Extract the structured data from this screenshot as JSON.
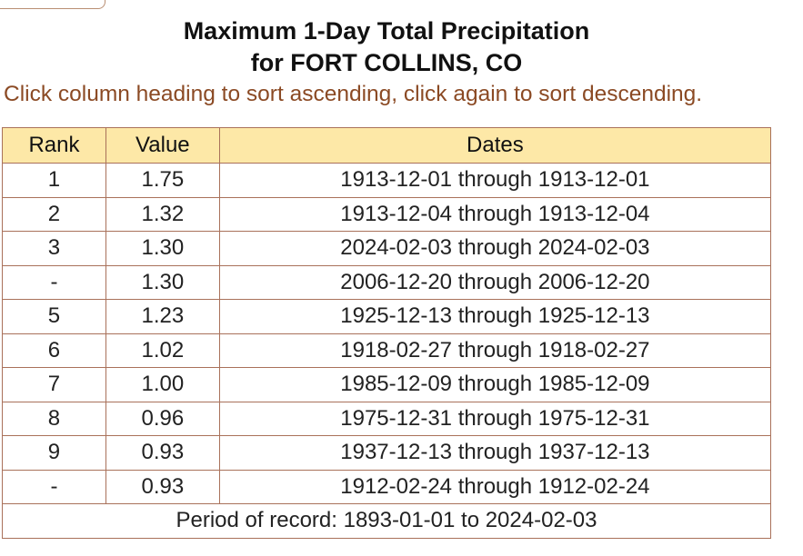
{
  "title_line1": "Maximum 1-Day Total Precipitation",
  "title_line2": "for FORT COLLINS, CO",
  "instructions": "Click column heading to sort ascending, click again to sort descending.",
  "table": {
    "headers": {
      "rank": "Rank",
      "value": "Value",
      "dates": "Dates"
    },
    "rows": [
      {
        "rank": "1",
        "value": "1.75",
        "dates": "1913-12-01 through 1913-12-01"
      },
      {
        "rank": "2",
        "value": "1.32",
        "dates": "1913-12-04 through 1913-12-04"
      },
      {
        "rank": "3",
        "value": "1.30",
        "dates": "2024-02-03 through 2024-02-03"
      },
      {
        "rank": "-",
        "value": "1.30",
        "dates": "2006-12-20 through 2006-12-20"
      },
      {
        "rank": "5",
        "value": "1.23",
        "dates": "1925-12-13 through 1925-12-13"
      },
      {
        "rank": "6",
        "value": "1.02",
        "dates": "1918-02-27 through 1918-02-27"
      },
      {
        "rank": "7",
        "value": "1.00",
        "dates": "1985-12-09 through 1985-12-09"
      },
      {
        "rank": "8",
        "value": "0.96",
        "dates": "1975-12-31 through 1975-12-31"
      },
      {
        "rank": "9",
        "value": "0.93",
        "dates": "1937-12-13 through 1937-12-13"
      },
      {
        "rank": "-",
        "value": "0.93",
        "dates": "1912-02-24 through 1912-02-24"
      }
    ],
    "footer": "Period of record: 1893-01-01 to 2024-02-03"
  },
  "colors": {
    "header_bg": "#fde8a7",
    "border": "#a9715a",
    "instructions_text": "#8b4a24"
  }
}
